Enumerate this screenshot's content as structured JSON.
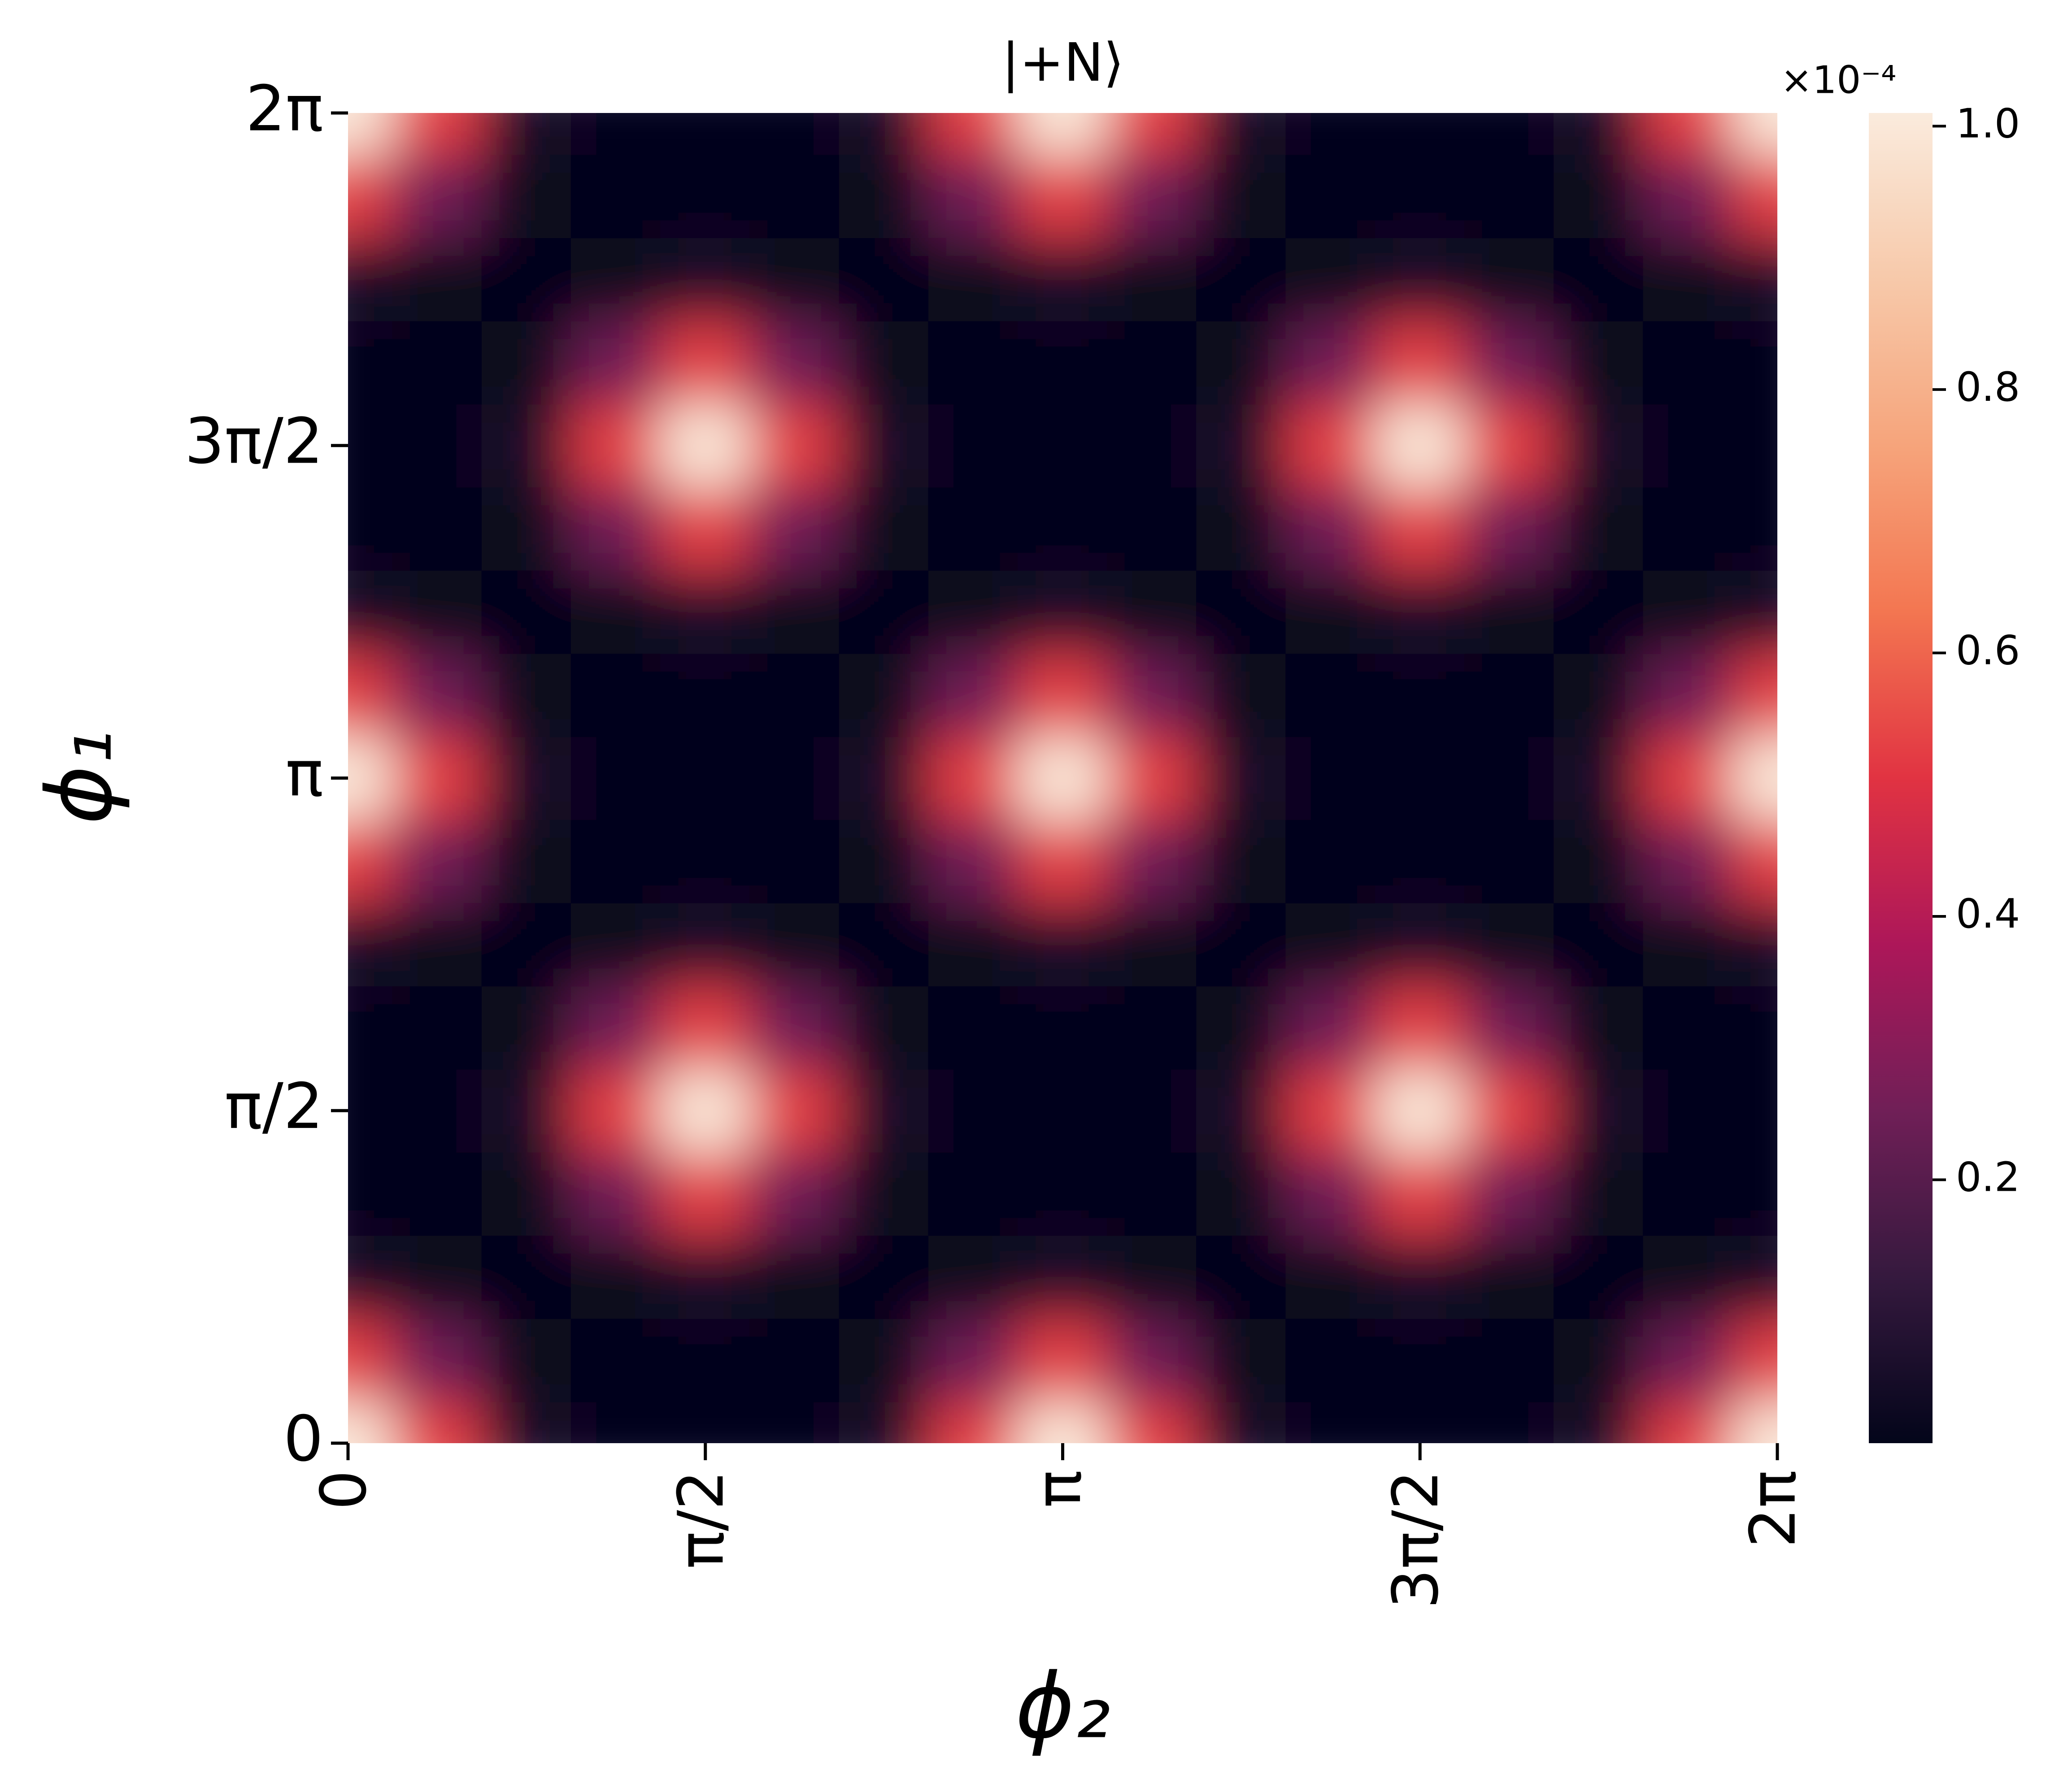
{
  "chart_data": {
    "type": "heatmap",
    "title": "|+N⟩",
    "xlabel": "ϕ₂",
    "ylabel": "ϕ₁",
    "x": [
      0,
      0.3927,
      0.7854,
      1.1781,
      1.5708,
      1.9635,
      2.3562,
      2.7489,
      3.1416,
      3.5343,
      3.927,
      4.3197,
      4.7124,
      5.1051,
      5.4978,
      5.8905,
      6.2832
    ],
    "y": [
      0,
      0.3927,
      0.7854,
      1.1781,
      1.5708,
      1.9635,
      2.3562,
      2.7489,
      3.1416,
      3.5343,
      3.927,
      4.3197,
      4.7124,
      5.1051,
      5.4978,
      5.8905,
      6.2832
    ],
    "z": [
      [
        1,
        0.531,
        0.063,
        0,
        0,
        0,
        0.063,
        0.531,
        1,
        0.531,
        0.063,
        0,
        0,
        0,
        0.063,
        0.531,
        1
      ],
      [
        0.531,
        0.25,
        0.015,
        0,
        0,
        0,
        0.015,
        0.25,
        0.531,
        0.25,
        0.015,
        0,
        0,
        0,
        0.015,
        0.25,
        0.531
      ],
      [
        0.063,
        0.015,
        0,
        0.015,
        0.063,
        0.015,
        0,
        0.015,
        0.063,
        0.015,
        0,
        0.015,
        0.063,
        0.015,
        0,
        0.015,
        0.063
      ],
      [
        0,
        0,
        0.015,
        0.25,
        0.531,
        0.25,
        0.015,
        0,
        0,
        0,
        0.015,
        0.25,
        0.531,
        0.25,
        0.015,
        0,
        0
      ],
      [
        0,
        0,
        0.063,
        0.531,
        1,
        0.531,
        0.063,
        0,
        0,
        0,
        0.063,
        0.531,
        1,
        0.531,
        0.063,
        0,
        0
      ],
      [
        0,
        0,
        0.015,
        0.25,
        0.531,
        0.25,
        0.015,
        0,
        0,
        0,
        0.015,
        0.25,
        0.531,
        0.25,
        0.015,
        0,
        0
      ],
      [
        0.063,
        0.015,
        0,
        0.015,
        0.063,
        0.015,
        0,
        0.015,
        0.063,
        0.015,
        0,
        0.015,
        0.063,
        0.015,
        0,
        0.015,
        0.063
      ],
      [
        0.531,
        0.25,
        0.015,
        0,
        0,
        0,
        0.015,
        0.25,
        0.531,
        0.25,
        0.015,
        0,
        0,
        0,
        0.015,
        0.25,
        0.531
      ],
      [
        1,
        0.531,
        0.063,
        0,
        0,
        0,
        0.063,
        0.531,
        1,
        0.531,
        0.063,
        0,
        0,
        0,
        0.063,
        0.531,
        1
      ],
      [
        0.531,
        0.25,
        0.015,
        0,
        0,
        0,
        0.015,
        0.25,
        0.531,
        0.25,
        0.015,
        0,
        0,
        0,
        0.015,
        0.25,
        0.531
      ],
      [
        0.063,
        0.015,
        0,
        0.015,
        0.063,
        0.015,
        0,
        0.015,
        0.063,
        0.015,
        0,
        0.015,
        0.063,
        0.015,
        0,
        0.015,
        0.063
      ],
      [
        0,
        0,
        0.015,
        0.25,
        0.531,
        0.25,
        0.015,
        0,
        0,
        0,
        0.015,
        0.25,
        0.531,
        0.25,
        0.015,
        0,
        0
      ],
      [
        0,
        0,
        0.063,
        0.531,
        1,
        0.531,
        0.063,
        0,
        0,
        0,
        0.063,
        0.531,
        1,
        0.531,
        0.063,
        0,
        0
      ],
      [
        0,
        0,
        0.015,
        0.25,
        0.531,
        0.25,
        0.015,
        0,
        0,
        0,
        0.015,
        0.25,
        0.531,
        0.25,
        0.015,
        0,
        0
      ],
      [
        0.063,
        0.015,
        0,
        0.015,
        0.063,
        0.015,
        0,
        0.015,
        0.063,
        0.015,
        0,
        0.015,
        0.063,
        0.015,
        0,
        0.015,
        0.063
      ],
      [
        0.531,
        0.25,
        0.015,
        0,
        0,
        0,
        0.015,
        0.25,
        0.531,
        0.25,
        0.015,
        0,
        0,
        0,
        0.015,
        0.25,
        0.531
      ],
      [
        1,
        0.531,
        0.063,
        0,
        0,
        0,
        0.063,
        0.531,
        1,
        0.531,
        0.063,
        0,
        0,
        0,
        0.063,
        0.531,
        1
      ]
    ],
    "xlim": [
      0,
      6.2832
    ],
    "ylim": [
      0,
      6.2832
    ],
    "xticks": [
      0,
      {
        "value": 1.5708,
        "label": "π/2"
      },
      {
        "value": 3.1416,
        "label": "π"
      },
      {
        "value": 4.7124,
        "label": "3π/2"
      },
      {
        "value": 6.2832,
        "label": "2π"
      }
    ],
    "yticks": [
      0,
      {
        "value": 1.5708,
        "label": "π/2"
      },
      {
        "value": 3.1416,
        "label": "π"
      },
      {
        "value": 4.7124,
        "label": "3π/2"
      },
      {
        "value": 6.2832,
        "label": "2π"
      }
    ],
    "clim": [
      0,
      1.01
    ],
    "cticks": [
      0.2,
      0.4,
      0.6,
      0.8,
      {
        "value": 1.0,
        "label": "1.0"
      }
    ],
    "colorbar_label": "×10⁻⁴",
    "colormap": [
      "#03051a",
      "#35193e",
      "#701f57",
      "#ad1759",
      "#e13342",
      "#f37651",
      "#f6a47b",
      "#f7c9aa",
      "#faebdd"
    ]
  }
}
